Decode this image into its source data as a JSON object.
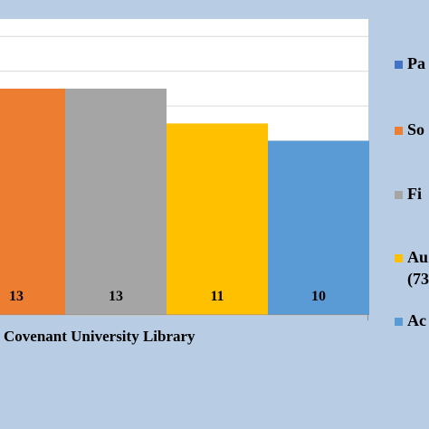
{
  "chart_data": {
    "type": "bar",
    "categories": [
      "Covenant University Library"
    ],
    "ylim": [
      0,
      17
    ],
    "grid": true,
    "legend_position": "right",
    "series": [
      {
        "name": "Pa",
        "values": [
          null
        ],
        "color": "#4472c4"
      },
      {
        "name": "So",
        "values": [
          13
        ],
        "color": "#ed7d31"
      },
      {
        "name": "Fi",
        "values": [
          13
        ],
        "color": "#a5a5a5"
      },
      {
        "name": "Au",
        "values": [
          11
        ],
        "color": "#ffc000"
      },
      {
        "name": "Ac",
        "values": [
          10
        ],
        "color": "#5b9bd5"
      }
    ],
    "legend_extra": {
      "Au": "(73"
    },
    "bar_labels": [
      "13",
      "13",
      "11",
      "10"
    ],
    "plot_background": "#ffffff",
    "page_background": "#b8cce4"
  }
}
